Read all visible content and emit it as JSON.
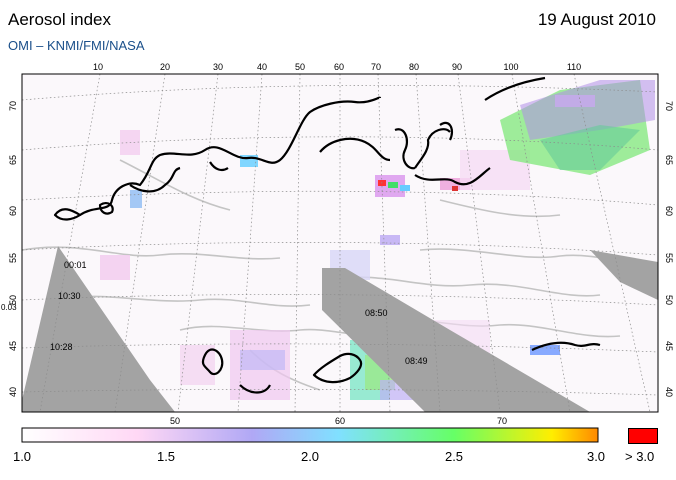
{
  "header": {
    "title": "Aerosol index",
    "date": "19 August 2010",
    "source": "OMI  –  KNMI/FMI/NASA"
  },
  "map": {
    "top_lon_labels": [
      "10",
      "20",
      "30",
      "40",
      "50",
      "60",
      "70",
      "80",
      "90",
      "100",
      "110"
    ],
    "bottom_lon_labels": [
      "50",
      "60",
      "70"
    ],
    "left_lat_labels": [
      "70",
      "65",
      "60",
      "55",
      "50",
      "45",
      "40"
    ],
    "right_lat_labels": [
      "70",
      "65",
      "60",
      "55",
      "50",
      "45",
      "40"
    ],
    "left_edge_label": "0.03",
    "time_labels": [
      "00:01",
      "10:30",
      "10:28",
      "08:50",
      "08:49"
    ],
    "colors": {
      "land_gray": "#bdbdbd",
      "no_data": "#9e9e9e",
      "coast": "#000000",
      "grid": "#777777"
    }
  },
  "colorbar": {
    "min": 1.0,
    "max": 3.0,
    "tick_labels": [
      "1.0",
      "1.5",
      "2.0",
      "2.5",
      "3.0"
    ],
    "over_label": "> 3.0",
    "over_color": "#ff0000",
    "stops": [
      "#ffffff",
      "#ffd8f5",
      "#b0a8f5",
      "#80e0ff",
      "#66ff66",
      "#ffee00",
      "#ff8800"
    ]
  }
}
